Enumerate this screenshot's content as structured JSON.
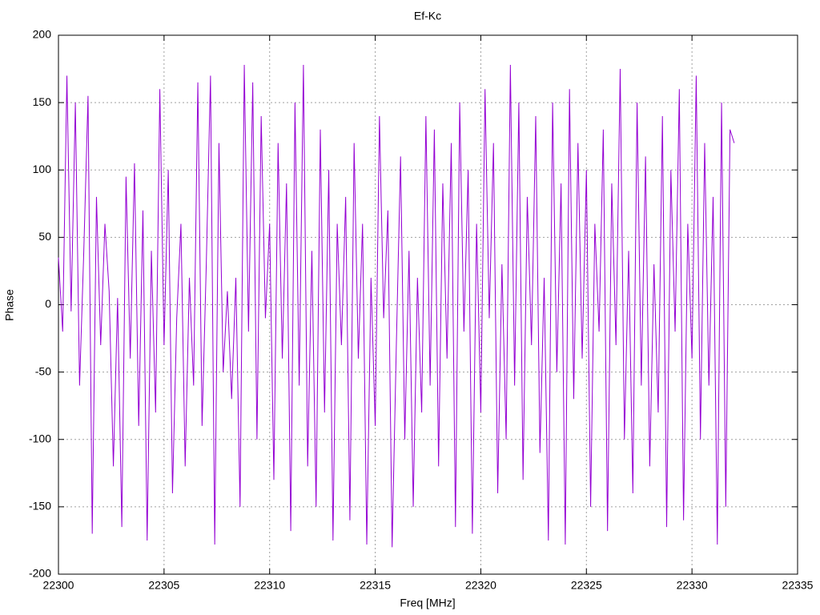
{
  "chart_data": {
    "type": "line",
    "title": "Ef-Kc",
    "xlabel": "Freq [MHz]",
    "ylabel": "Phase",
    "color": "#9400d3",
    "grid": true,
    "xlim": [
      22300,
      22335
    ],
    "xticks": [
      22300,
      22305,
      22310,
      22315,
      22320,
      22325,
      22330,
      22335
    ],
    "ylim": [
      -200,
      200
    ],
    "yticks": [
      -200,
      -150,
      -100,
      -50,
      0,
      50,
      100,
      150,
      200
    ],
    "x": [
      22300.0,
      22300.2,
      22300.4,
      22300.6,
      22300.8,
      22301.0,
      22301.2,
      22301.4,
      22301.6,
      22301.8,
      22302.0,
      22302.2,
      22302.4,
      22302.6,
      22302.8,
      22303.0,
      22303.2,
      22303.4,
      22303.6,
      22303.8,
      22304.0,
      22304.2,
      22304.4,
      22304.6,
      22304.8,
      22305.0,
      22305.2,
      22305.4,
      22305.6,
      22305.8,
      22306.0,
      22306.2,
      22306.4,
      22306.6,
      22306.8,
      22307.0,
      22307.2,
      22307.4,
      22307.6,
      22307.8,
      22308.0,
      22308.2,
      22308.4,
      22308.6,
      22308.8,
      22309.0,
      22309.2,
      22309.4,
      22309.6,
      22309.8,
      22310.0,
      22310.2,
      22310.4,
      22310.6,
      22310.8,
      22311.0,
      22311.2,
      22311.4,
      22311.6,
      22311.8,
      22312.0,
      22312.2,
      22312.4,
      22312.6,
      22312.8,
      22313.0,
      22313.2,
      22313.4,
      22313.6,
      22313.8,
      22314.0,
      22314.2,
      22314.4,
      22314.6,
      22314.8,
      22315.0,
      22315.2,
      22315.4,
      22315.6,
      22315.8,
      22316.0,
      22316.2,
      22316.4,
      22316.6,
      22316.8,
      22317.0,
      22317.2,
      22317.4,
      22317.6,
      22317.8,
      22318.0,
      22318.2,
      22318.4,
      22318.6,
      22318.8,
      22319.0,
      22319.2,
      22319.4,
      22319.6,
      22319.8,
      22320.0,
      22320.2,
      22320.4,
      22320.6,
      22320.8,
      22321.0,
      22321.2,
      22321.4,
      22321.6,
      22321.8,
      22322.0,
      22322.2,
      22322.4,
      22322.6,
      22322.8,
      22323.0,
      22323.2,
      22323.4,
      22323.6,
      22323.8,
      22324.0,
      22324.2,
      22324.4,
      22324.6,
      22324.8,
      22325.0,
      22325.2,
      22325.4,
      22325.6,
      22325.8,
      22326.0,
      22326.2,
      22326.4,
      22326.6,
      22326.8,
      22327.0,
      22327.2,
      22327.4,
      22327.6,
      22327.8,
      22328.0,
      22328.2,
      22328.4,
      22328.6,
      22328.8,
      22329.0,
      22329.2,
      22329.4,
      22329.6,
      22329.8,
      22330.0,
      22330.2,
      22330.4,
      22330.6,
      22330.8,
      22331.0,
      22331.2,
      22331.4,
      22331.6,
      22331.8,
      22332.0
    ],
    "values": [
      35,
      -20,
      170,
      -5,
      150,
      -60,
      40,
      155,
      -170,
      80,
      -30,
      60,
      10,
      -120,
      5,
      -165,
      95,
      -40,
      105,
      -90,
      70,
      -175,
      40,
      -80,
      160,
      -30,
      100,
      -140,
      -10,
      60,
      -120,
      20,
      -60,
      165,
      -90,
      30,
      170,
      -178,
      120,
      -50,
      10,
      -70,
      20,
      -150,
      178,
      -20,
      165,
      -100,
      140,
      -10,
      60,
      -130,
      120,
      -40,
      90,
      -168,
      150,
      -60,
      178,
      -120,
      40,
      -150,
      130,
      -80,
      100,
      -175,
      60,
      -30,
      80,
      -160,
      120,
      -40,
      60,
      -178,
      20,
      -90,
      140,
      -10,
      70,
      -180,
      -30,
      110,
      -100,
      40,
      -150,
      20,
      -80,
      140,
      -60,
      130,
      -120,
      90,
      -40,
      120,
      -165,
      150,
      -20,
      100,
      -170,
      60,
      -80,
      160,
      -10,
      120,
      -140,
      30,
      -100,
      178,
      -60,
      150,
      -130,
      80,
      -30,
      140,
      -110,
      20,
      -175,
      150,
      -50,
      90,
      -178,
      160,
      -70,
      120,
      -40,
      100,
      -150,
      60,
      -20,
      130,
      -168,
      90,
      -30,
      175,
      -100,
      40,
      -140,
      150,
      -60,
      110,
      -120,
      30,
      -80,
      140,
      -165,
      100,
      -20,
      160,
      -160,
      60,
      -40,
      170,
      -100,
      120,
      -60,
      80,
      -178,
      150,
      -150,
      130,
      120
    ]
  }
}
